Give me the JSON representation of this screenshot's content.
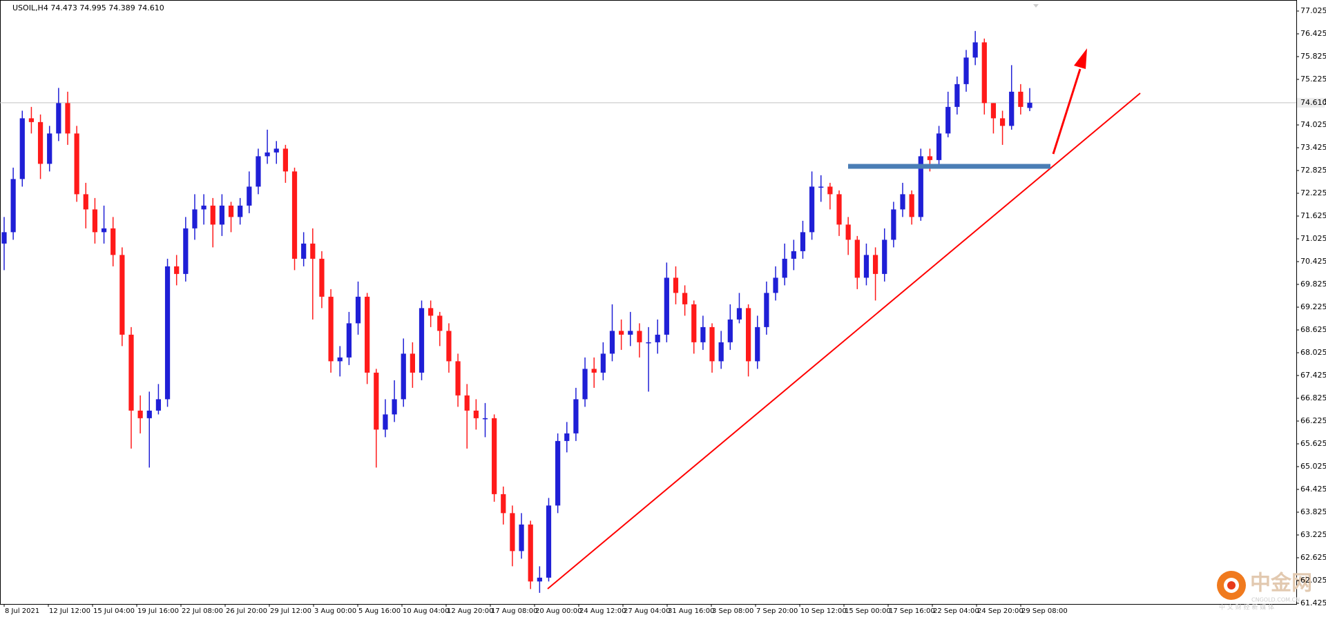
{
  "chart_data": {
    "type": "candlestick",
    "title": "USOIL,H4  74.473 74.995 74.389 74.610",
    "up_color": "#1f1fd6",
    "down_color": "#ff1a1a",
    "ylim": [
      61.425,
      77.025
    ],
    "yticks": [
      77.025,
      76.425,
      75.825,
      75.225,
      74.625,
      74.025,
      73.425,
      72.825,
      72.225,
      71.625,
      71.025,
      70.425,
      69.825,
      69.225,
      68.625,
      68.025,
      67.425,
      66.825,
      66.225,
      65.625,
      65.025,
      64.425,
      63.825,
      63.225,
      62.625,
      62.025,
      61.425
    ],
    "current_price": {
      "value": 74.61,
      "label": "74.610"
    },
    "x_labels": [
      "8 Jul 2021",
      "12 Jul 12:00",
      "15 Jul 04:00",
      "19 Jul 16:00",
      "22 Jul 08:00",
      "26 Jul 20:00",
      "29 Jul 12:00",
      "3 Aug 00:00",
      "5 Aug 16:00",
      "10 Aug 04:00",
      "12 Aug 20:00",
      "17 Aug 08:00",
      "20 Aug 00:00",
      "24 Aug 12:00",
      "27 Aug 04:00",
      "31 Aug 16:00",
      "3 Sep 08:00",
      "7 Sep 20:00",
      "10 Sep 12:00",
      "15 Sep 00:00",
      "17 Sep 16:00",
      "22 Sep 04:00",
      "24 Sep 20:00",
      "29 Sep 08:00"
    ],
    "candles": [
      {
        "o": 70.9,
        "h": 71.6,
        "l": 70.2,
        "c": 71.2
      },
      {
        "o": 71.2,
        "h": 72.9,
        "l": 71.0,
        "c": 72.6
      },
      {
        "o": 72.6,
        "h": 74.4,
        "l": 72.4,
        "c": 74.2
      },
      {
        "o": 74.2,
        "h": 74.5,
        "l": 73.8,
        "c": 74.1
      },
      {
        "o": 74.1,
        "h": 74.3,
        "l": 72.6,
        "c": 73.0
      },
      {
        "o": 73.0,
        "h": 74.0,
        "l": 72.8,
        "c": 73.8
      },
      {
        "o": 73.8,
        "h": 75.0,
        "l": 73.6,
        "c": 74.6
      },
      {
        "o": 74.6,
        "h": 74.9,
        "l": 73.5,
        "c": 73.8
      },
      {
        "o": 73.8,
        "h": 74.0,
        "l": 72.0,
        "c": 72.2
      },
      {
        "o": 72.2,
        "h": 72.5,
        "l": 71.3,
        "c": 71.8
      },
      {
        "o": 71.8,
        "h": 72.1,
        "l": 70.9,
        "c": 71.2
      },
      {
        "o": 71.2,
        "h": 71.9,
        "l": 70.9,
        "c": 71.3
      },
      {
        "o": 71.3,
        "h": 71.6,
        "l": 70.3,
        "c": 70.6
      },
      {
        "o": 70.6,
        "h": 70.8,
        "l": 68.2,
        "c": 68.5
      },
      {
        "o": 68.5,
        "h": 68.7,
        "l": 65.5,
        "c": 66.5
      },
      {
        "o": 66.5,
        "h": 66.9,
        "l": 65.9,
        "c": 66.3
      },
      {
        "o": 66.3,
        "h": 67.0,
        "l": 65.0,
        "c": 66.5
      },
      {
        "o": 66.5,
        "h": 67.2,
        "l": 66.4,
        "c": 66.8
      },
      {
        "o": 66.8,
        "h": 70.5,
        "l": 66.6,
        "c": 70.3
      },
      {
        "o": 70.3,
        "h": 70.6,
        "l": 69.8,
        "c": 70.1
      },
      {
        "o": 70.1,
        "h": 71.6,
        "l": 69.9,
        "c": 71.3
      },
      {
        "o": 71.3,
        "h": 72.2,
        "l": 71.0,
        "c": 71.8
      },
      {
        "o": 71.8,
        "h": 72.2,
        "l": 71.4,
        "c": 71.9
      },
      {
        "o": 71.9,
        "h": 72.1,
        "l": 70.8,
        "c": 71.4
      },
      {
        "o": 71.4,
        "h": 72.2,
        "l": 71.1,
        "c": 71.9
      },
      {
        "o": 71.9,
        "h": 72.0,
        "l": 71.2,
        "c": 71.6
      },
      {
        "o": 71.6,
        "h": 72.1,
        "l": 71.4,
        "c": 71.9
      },
      {
        "o": 71.9,
        "h": 72.8,
        "l": 71.7,
        "c": 72.4
      },
      {
        "o": 72.4,
        "h": 73.4,
        "l": 72.2,
        "c": 73.2
      },
      {
        "o": 73.2,
        "h": 73.9,
        "l": 73.0,
        "c": 73.3
      },
      {
        "o": 73.3,
        "h": 73.6,
        "l": 73.0,
        "c": 73.4
      },
      {
        "o": 73.4,
        "h": 73.5,
        "l": 72.5,
        "c": 72.8
      },
      {
        "o": 72.8,
        "h": 72.9,
        "l": 70.2,
        "c": 70.5
      },
      {
        "o": 70.5,
        "h": 71.2,
        "l": 70.3,
        "c": 70.9
      },
      {
        "o": 70.9,
        "h": 71.3,
        "l": 68.9,
        "c": 70.5
      },
      {
        "o": 70.5,
        "h": 70.7,
        "l": 69.2,
        "c": 69.5
      },
      {
        "o": 69.5,
        "h": 69.7,
        "l": 67.5,
        "c": 67.8
      },
      {
        "o": 67.8,
        "h": 68.2,
        "l": 67.4,
        "c": 67.9
      },
      {
        "o": 67.9,
        "h": 69.1,
        "l": 67.7,
        "c": 68.8
      },
      {
        "o": 68.8,
        "h": 69.9,
        "l": 68.5,
        "c": 69.5
      },
      {
        "o": 69.5,
        "h": 69.6,
        "l": 67.2,
        "c": 67.5
      },
      {
        "o": 67.5,
        "h": 67.6,
        "l": 65.0,
        "c": 66.0
      },
      {
        "o": 66.0,
        "h": 66.8,
        "l": 65.8,
        "c": 66.4
      },
      {
        "o": 66.4,
        "h": 67.3,
        "l": 66.2,
        "c": 66.8
      },
      {
        "o": 66.8,
        "h": 68.4,
        "l": 66.6,
        "c": 68.0
      },
      {
        "o": 68.0,
        "h": 68.3,
        "l": 67.1,
        "c": 67.5
      },
      {
        "o": 67.5,
        "h": 69.4,
        "l": 67.3,
        "c": 69.2
      },
      {
        "o": 69.2,
        "h": 69.4,
        "l": 68.7,
        "c": 69.0
      },
      {
        "o": 69.0,
        "h": 69.1,
        "l": 68.2,
        "c": 68.6
      },
      {
        "o": 68.6,
        "h": 68.8,
        "l": 67.5,
        "c": 67.8
      },
      {
        "o": 67.8,
        "h": 68.0,
        "l": 66.6,
        "c": 66.9
      },
      {
        "o": 66.9,
        "h": 67.2,
        "l": 65.5,
        "c": 66.5
      },
      {
        "o": 66.5,
        "h": 66.8,
        "l": 66.0,
        "c": 66.3
      },
      {
        "o": 66.3,
        "h": 66.7,
        "l": 65.8,
        "c": 66.3
      },
      {
        "o": 66.3,
        "h": 66.4,
        "l": 64.1,
        "c": 64.3
      },
      {
        "o": 64.3,
        "h": 64.5,
        "l": 63.5,
        "c": 63.8
      },
      {
        "o": 63.8,
        "h": 64.0,
        "l": 62.4,
        "c": 62.8
      },
      {
        "o": 62.8,
        "h": 63.8,
        "l": 62.6,
        "c": 63.5
      },
      {
        "o": 63.5,
        "h": 63.6,
        "l": 61.8,
        "c": 62.0
      },
      {
        "o": 62.0,
        "h": 62.4,
        "l": 61.7,
        "c": 62.1
      },
      {
        "o": 62.1,
        "h": 64.2,
        "l": 62.0,
        "c": 64.0
      },
      {
        "o": 64.0,
        "h": 65.9,
        "l": 63.8,
        "c": 65.7
      },
      {
        "o": 65.7,
        "h": 66.2,
        "l": 65.4,
        "c": 65.9
      },
      {
        "o": 65.9,
        "h": 67.1,
        "l": 65.7,
        "c": 66.8
      },
      {
        "o": 66.8,
        "h": 67.9,
        "l": 66.6,
        "c": 67.6
      },
      {
        "o": 67.6,
        "h": 67.9,
        "l": 67.1,
        "c": 67.5
      },
      {
        "o": 67.5,
        "h": 68.3,
        "l": 67.3,
        "c": 68.0
      },
      {
        "o": 68.0,
        "h": 69.3,
        "l": 67.8,
        "c": 68.6
      },
      {
        "o": 68.6,
        "h": 68.9,
        "l": 68.1,
        "c": 68.5
      },
      {
        "o": 68.5,
        "h": 69.1,
        "l": 68.2,
        "c": 68.6
      },
      {
        "o": 68.6,
        "h": 68.8,
        "l": 67.9,
        "c": 68.3
      },
      {
        "o": 68.3,
        "h": 68.7,
        "l": 67.0,
        "c": 68.3
      },
      {
        "o": 68.3,
        "h": 68.9,
        "l": 68.0,
        "c": 68.5
      },
      {
        "o": 68.5,
        "h": 70.4,
        "l": 68.3,
        "c": 70.0
      },
      {
        "o": 70.0,
        "h": 70.3,
        "l": 69.3,
        "c": 69.6
      },
      {
        "o": 69.6,
        "h": 69.8,
        "l": 69.0,
        "c": 69.3
      },
      {
        "o": 69.3,
        "h": 69.4,
        "l": 68.0,
        "c": 68.3
      },
      {
        "o": 68.3,
        "h": 69.0,
        "l": 68.1,
        "c": 68.7
      },
      {
        "o": 68.7,
        "h": 68.8,
        "l": 67.5,
        "c": 67.8
      },
      {
        "o": 67.8,
        "h": 68.6,
        "l": 67.6,
        "c": 68.3
      },
      {
        "o": 68.3,
        "h": 69.3,
        "l": 68.1,
        "c": 68.9
      },
      {
        "o": 68.9,
        "h": 69.6,
        "l": 68.8,
        "c": 69.2
      },
      {
        "o": 69.2,
        "h": 69.3,
        "l": 67.4,
        "c": 67.8
      },
      {
        "o": 67.8,
        "h": 69.0,
        "l": 67.6,
        "c": 68.7
      },
      {
        "o": 68.7,
        "h": 69.9,
        "l": 68.5,
        "c": 69.6
      },
      {
        "o": 69.6,
        "h": 70.3,
        "l": 69.4,
        "c": 70.0
      },
      {
        "o": 70.0,
        "h": 70.9,
        "l": 69.8,
        "c": 70.5
      },
      {
        "o": 70.5,
        "h": 71.0,
        "l": 70.2,
        "c": 70.7
      },
      {
        "o": 70.7,
        "h": 71.5,
        "l": 70.5,
        "c": 71.2
      },
      {
        "o": 71.2,
        "h": 72.8,
        "l": 71.0,
        "c": 72.4
      },
      {
        "o": 72.4,
        "h": 72.7,
        "l": 72.0,
        "c": 72.4
      },
      {
        "o": 72.4,
        "h": 72.5,
        "l": 71.8,
        "c": 72.2
      },
      {
        "o": 72.2,
        "h": 72.3,
        "l": 71.1,
        "c": 71.4
      },
      {
        "o": 71.4,
        "h": 71.6,
        "l": 70.6,
        "c": 71.0
      },
      {
        "o": 71.0,
        "h": 71.1,
        "l": 69.7,
        "c": 70.0
      },
      {
        "o": 70.0,
        "h": 70.9,
        "l": 69.8,
        "c": 70.6
      },
      {
        "o": 70.6,
        "h": 70.8,
        "l": 69.4,
        "c": 70.1
      },
      {
        "o": 70.1,
        "h": 71.3,
        "l": 69.9,
        "c": 71.0
      },
      {
        "o": 71.0,
        "h": 72.0,
        "l": 70.8,
        "c": 71.8
      },
      {
        "o": 71.8,
        "h": 72.5,
        "l": 71.6,
        "c": 72.2
      },
      {
        "o": 72.2,
        "h": 72.3,
        "l": 71.4,
        "c": 71.6
      },
      {
        "o": 71.6,
        "h": 73.4,
        "l": 71.5,
        "c": 73.2
      },
      {
        "o": 73.2,
        "h": 73.4,
        "l": 72.8,
        "c": 73.1
      },
      {
        "o": 73.1,
        "h": 74.0,
        "l": 72.9,
        "c": 73.8
      },
      {
        "o": 73.8,
        "h": 74.9,
        "l": 73.7,
        "c": 74.5
      },
      {
        "o": 74.5,
        "h": 75.3,
        "l": 74.3,
        "c": 75.1
      },
      {
        "o": 75.1,
        "h": 76.0,
        "l": 74.9,
        "c": 75.8
      },
      {
        "o": 75.8,
        "h": 76.5,
        "l": 75.6,
        "c": 76.2
      },
      {
        "o": 76.2,
        "h": 76.3,
        "l": 74.3,
        "c": 74.6
      },
      {
        "o": 74.6,
        "h": 74.6,
        "l": 73.8,
        "c": 74.2
      },
      {
        "o": 74.2,
        "h": 74.4,
        "l": 73.5,
        "c": 74.0
      },
      {
        "o": 74.0,
        "h": 75.6,
        "l": 73.9,
        "c": 74.9
      },
      {
        "o": 74.9,
        "h": 75.1,
        "l": 74.3,
        "c": 74.5
      },
      {
        "o": 74.473,
        "h": 74.995,
        "l": 74.389,
        "c": 74.61
      }
    ]
  },
  "watermark": {
    "brand": "中金网",
    "domain": "CNGOLD.COM.CN",
    "slogan": "中 文 财 经 新 媒 体"
  }
}
